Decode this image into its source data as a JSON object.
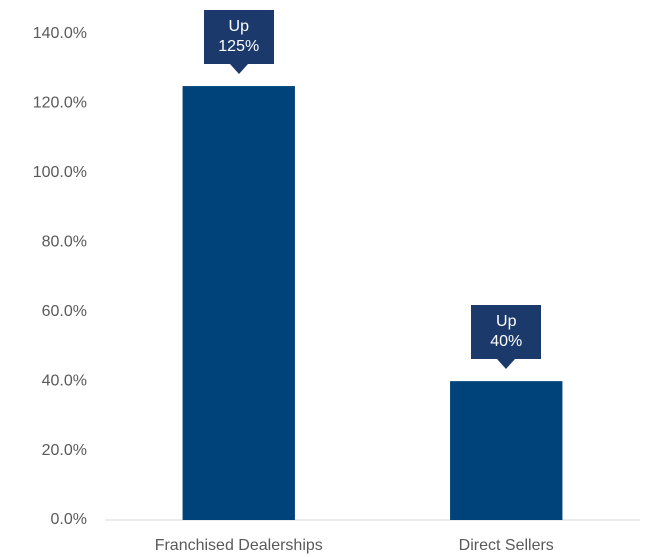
{
  "chart_data": {
    "type": "bar",
    "categories": [
      "Franchised Dealerships",
      "Direct Sellers"
    ],
    "values": [
      125,
      40
    ],
    "value_labels": [
      "Up 125%",
      "Up 40%"
    ],
    "color": "#00427a",
    "ylim": [
      0,
      140
    ],
    "yticks": [
      {
        "value": 0,
        "label": "0.0%"
      },
      {
        "value": 20,
        "label": "20.0%"
      },
      {
        "value": 40,
        "label": "40.0%"
      },
      {
        "value": 60,
        "label": "60.0%"
      },
      {
        "value": 80,
        "label": "80.0%"
      },
      {
        "value": 100,
        "label": "100.0%"
      },
      {
        "value": 120,
        "label": "120.0%"
      },
      {
        "value": 140,
        "label": "140.0%"
      }
    ],
    "grid": false
  }
}
